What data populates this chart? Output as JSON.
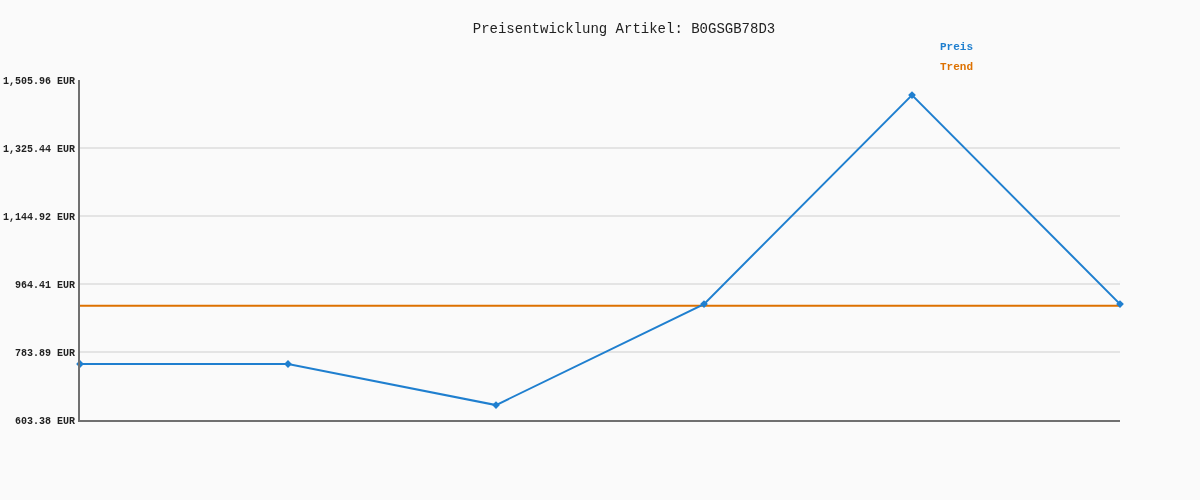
{
  "chart_data": {
    "type": "line",
    "title": "Preisentwicklung Artikel: B0GSGB78D3",
    "categories": [
      null,
      null,
      null,
      null,
      null,
      null
    ],
    "series": [
      {
        "name": "Preis",
        "color": "#1f7fcf",
        "values": [
          752,
          752,
          643,
          911,
          1466,
          911
        ],
        "marker": "diamond"
      },
      {
        "name": "Trend",
        "color": "#dd7100",
        "values": [
          907,
          907,
          907,
          907,
          907,
          907
        ],
        "marker": "none"
      }
    ],
    "ylim": [
      603.38,
      1505.96
    ],
    "yticks": [
      {
        "value": 603.38,
        "label": "603.38 EUR"
      },
      {
        "value": 783.89,
        "label": "783.89 EUR"
      },
      {
        "value": 964.41,
        "label": "964.41 EUR"
      },
      {
        "value": 1144.92,
        "label": "1,144.92 EUR"
      },
      {
        "value": 1325.44,
        "label": "1,325.44 EUR"
      },
      {
        "value": 1505.96,
        "label": "1,505.96 EUR"
      }
    ],
    "grid": "y",
    "legend": "top right",
    "tick_labels": "y"
  }
}
